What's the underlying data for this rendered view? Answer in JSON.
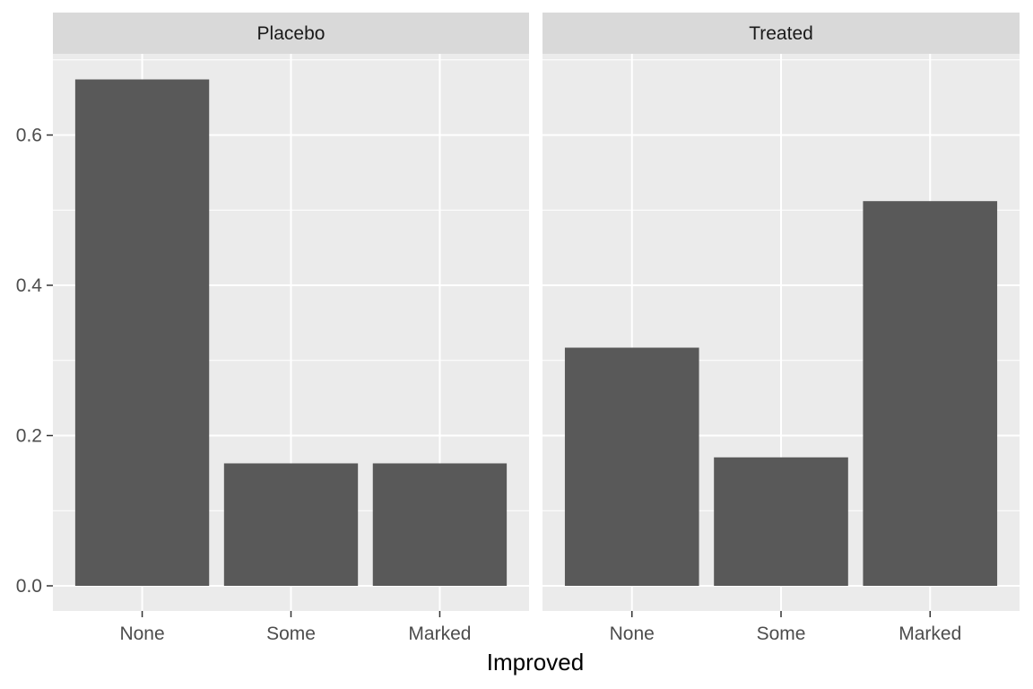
{
  "chart_data": {
    "type": "bar",
    "facet_by": "treatment",
    "xlabel": "Improved",
    "ylabel": "",
    "categories": [
      "None",
      "Some",
      "Marked"
    ],
    "ylim": [
      0,
      0.7
    ],
    "yticks": [
      0.0,
      0.2,
      0.4,
      0.6
    ],
    "ytick_labels": [
      "0.0",
      "0.2",
      "0.4",
      "0.6"
    ],
    "grid": true,
    "legend": "none",
    "facets": [
      {
        "label": "Placebo",
        "values": [
          0.674,
          0.163,
          0.163
        ]
      },
      {
        "label": "Treated",
        "values": [
          0.317,
          0.171,
          0.512
        ]
      }
    ]
  },
  "colors": {
    "panel_bg": "#ebebeb",
    "strip_bg": "#d9d9d9",
    "grid_major": "#ffffff",
    "bar_fill": "#595959",
    "tick": "#333333"
  }
}
